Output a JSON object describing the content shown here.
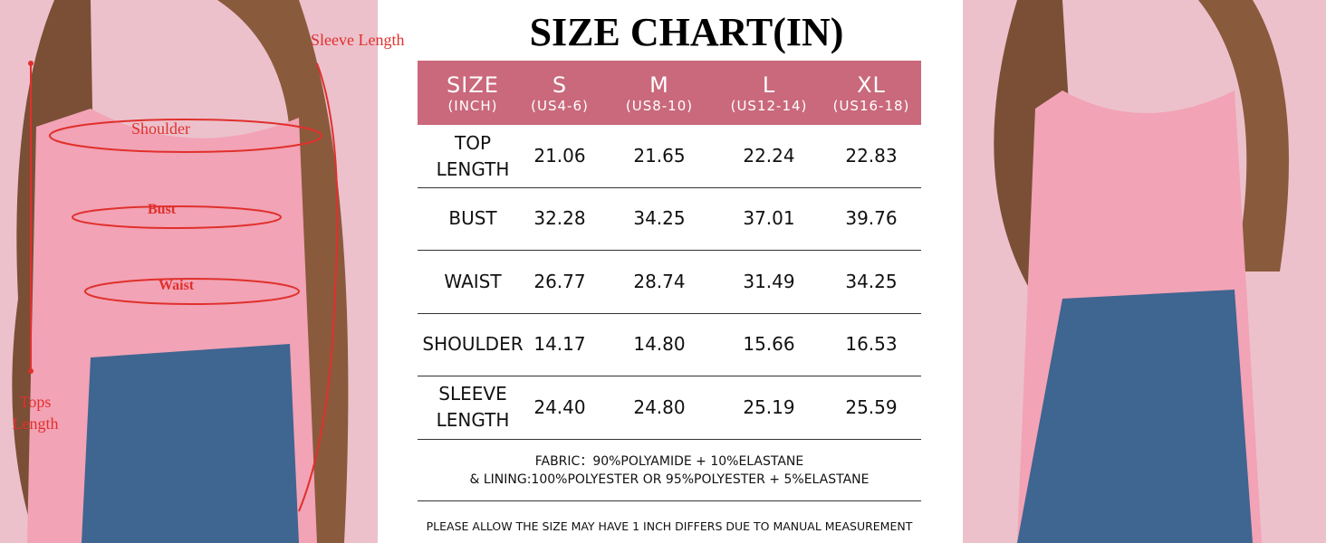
{
  "title": "SIZE CHART(IN)",
  "table": {
    "header": [
      {
        "size": "SIZE",
        "sub": "(INCH)"
      },
      {
        "size": "S",
        "sub": "(US4-6)"
      },
      {
        "size": "M",
        "sub": "(US8-10)"
      },
      {
        "size": "L",
        "sub": "(US12-14)"
      },
      {
        "size": "XL",
        "sub": "(US16-18)"
      }
    ],
    "rows": [
      [
        "TOP LENGTH",
        "21.06",
        "21.65",
        "22.24",
        "22.83"
      ],
      [
        "BUST",
        "32.28",
        "34.25",
        "37.01",
        "39.76"
      ],
      [
        "WAIST",
        "26.77",
        "28.74",
        "31.49",
        "34.25"
      ],
      [
        "SHOULDER",
        "14.17",
        "14.80",
        "15.66",
        "16.53"
      ],
      [
        "SLEEVE LENGTH",
        "24.40",
        "24.80",
        "25.19",
        "25.59"
      ]
    ]
  },
  "notes": [
    "FABRIC：90%POLYAMIDE + 10%ELASTANE",
    "& LINING:100%POLYESTER OR 95%POLYESTER + 5%ELASTANE"
  ],
  "disclaimer": "PLEASE ALLOW THE SIZE MAY HAVE 1 INCH DIFFERS DUE TO MANUAL MEASUREMENT",
  "diagram_labels": {
    "sleeve_length": "Sleeve Length",
    "shoulder": "Shoulder",
    "bust": "Bust",
    "waist": "Waist",
    "tops_length": "Tops Length"
  }
}
